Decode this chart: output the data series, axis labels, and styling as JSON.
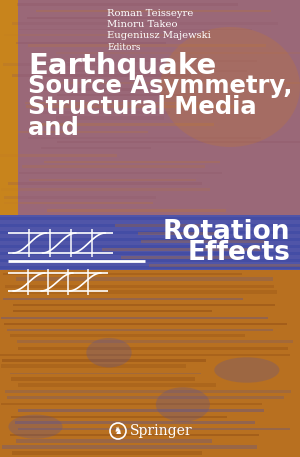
{
  "title_line1": "Earthquake",
  "title_line2": "Source Asymmetry,",
  "title_line3": "Structural Media",
  "title_line4": "and",
  "title_line5": "Rotation",
  "title_line6": "Effects",
  "author1": "Roman Teisseyre",
  "author2": "Minoru Takeo",
  "author3": "Eugeniusz Majewski",
  "editors_label": "Editors",
  "publisher": "Springer",
  "bg_top_color": "#a07090",
  "bg_bottom_color": "#b87020",
  "blue_band_color": "#5055a8",
  "left_strip_color": "#c8841c",
  "figsize": [
    3.0,
    4.57
  ],
  "dpi": 100
}
